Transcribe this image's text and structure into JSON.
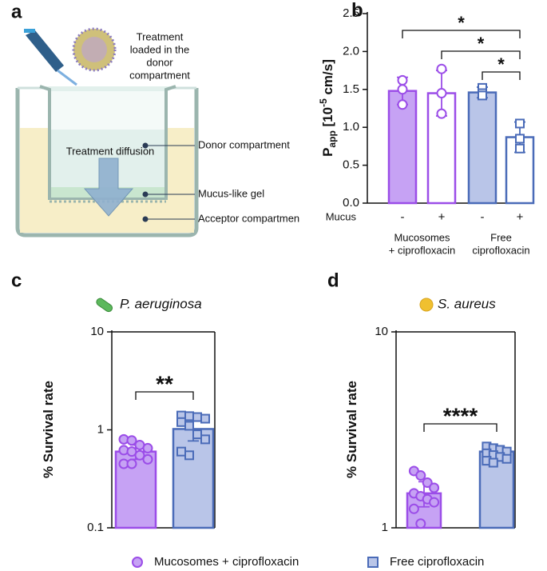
{
  "diagram": {
    "label": "a",
    "treatment_note": [
      "Treatment",
      "loaded in the",
      "donor",
      "compartment"
    ],
    "donor": "Donor compartment",
    "diffusion": "Treatment diffusion",
    "mucus_gel": "Mucus-like gel",
    "acceptor": "Acceptor compartmen"
  },
  "chart_data": [
    {
      "type": "bar",
      "label": "b",
      "ylabel": {
        "base": "P",
        "sub": "app",
        "unit": " [10",
        "sup": "-5",
        "unit_end": " cm/s]"
      },
      "ylim": [
        0,
        2.5
      ],
      "yticks": [
        {
          "value": 0,
          "label": "0.0"
        },
        0.5,
        {
          "value": 1,
          "label": "1.0"
        },
        1.5,
        {
          "value": 2,
          "label": "2.0"
        },
        2.5
      ],
      "log": false,
      "row_label": "Mucus",
      "categories": [
        "-",
        "+",
        "-",
        "+"
      ],
      "groups": [
        [
          "Mucosomes",
          "+ ciprofloxacin"
        ],
        [
          "Free",
          "ciprofloxacin"
        ]
      ],
      "values": [
        1.48,
        1.45,
        1.46,
        0.87
      ],
      "errors": [
        0.18,
        0.3,
        0.07,
        0.2
      ],
      "points": [
        [
          1.62,
          1.5,
          1.3
        ],
        [
          1.77,
          1.45,
          1.18
        ],
        [
          1.52,
          1.45,
          1.42
        ],
        [
          1.05,
          0.85,
          0.72
        ]
      ],
      "fills": [
        "#c6a2f4",
        "#ffffff",
        "#b9c5e8",
        "#ffffff"
      ],
      "edges": [
        "#9b4de8",
        "#9b4de8",
        "#4a6bb8",
        "#4a6bb8"
      ],
      "markers": [
        "circle",
        "circle",
        "square",
        "square"
      ],
      "point_fills": [
        "#ffffff",
        "#ffffff",
        "#ffffff",
        "#ffffff"
      ],
      "significance": [
        {
          "from": 0,
          "to": 3,
          "label": "*"
        },
        {
          "from": 1,
          "to": 3,
          "label": "*"
        },
        {
          "from": 2,
          "to": 3,
          "label": "*"
        }
      ]
    },
    {
      "type": "bar",
      "label": "c",
      "title": "P. aeruginosa",
      "ylabel": {
        "base": "% Survival rate"
      },
      "ylim": [
        0.1,
        10
      ],
      "yticks": [
        0.1,
        1,
        10
      ],
      "log": true,
      "values": [
        0.6,
        1.02
      ],
      "errors": [
        0.1,
        0.25
      ],
      "points": [
        [
          0.8,
          0.78,
          0.7,
          0.65,
          0.62,
          0.6,
          0.55,
          0.5,
          0.45,
          0.45
        ],
        [
          1.4,
          1.38,
          1.35,
          1.3,
          1.2,
          1.1,
          0.9,
          0.8,
          0.6,
          0.55
        ]
      ],
      "fills": [
        "#c6a2f4",
        "#b9c5e8"
      ],
      "edges": [
        "#9b4de8",
        "#4a6bb8"
      ],
      "markers": [
        "circle",
        "square"
      ],
      "point_fills": [
        "#c6a2f4",
        "#b9c5e8"
      ],
      "significance": [
        {
          "from": 0,
          "to": 1,
          "label": "**"
        }
      ]
    },
    {
      "type": "bar",
      "label": "d",
      "title": "S. aureus",
      "ylabel": {
        "base": "% Survival rate"
      },
      "ylim": [
        1,
        10
      ],
      "yticks": [
        1,
        10
      ],
      "log": true,
      "values": [
        1.5,
        2.45
      ],
      "errors": [
        0.22,
        0.15
      ],
      "points": [
        [
          1.95,
          1.85,
          1.7,
          1.6,
          1.5,
          1.45,
          1.4,
          1.35,
          1.25,
          1.05
        ],
        [
          2.6,
          2.55,
          2.5,
          2.45,
          2.4,
          2.35,
          2.3,
          2.25,
          2.2,
          2.15
        ]
      ],
      "fills": [
        "#c6a2f4",
        "#b9c5e8"
      ],
      "edges": [
        "#9b4de8",
        "#4a6bb8"
      ],
      "markers": [
        "circle",
        "square"
      ],
      "point_fills": [
        "#c6a2f4",
        "#b9c5e8"
      ],
      "significance": [
        {
          "from": 0,
          "to": 1,
          "label": "****"
        }
      ]
    }
  ],
  "legend": [
    {
      "name": "Mucosomes + ciprofloxacin",
      "marker": "circle",
      "fill": "#c6a2f4",
      "edge": "#9b4de8"
    },
    {
      "name": "Free ciprofloxacin",
      "marker": "square",
      "fill": "#b9c5e8",
      "edge": "#4a6bb8"
    }
  ]
}
